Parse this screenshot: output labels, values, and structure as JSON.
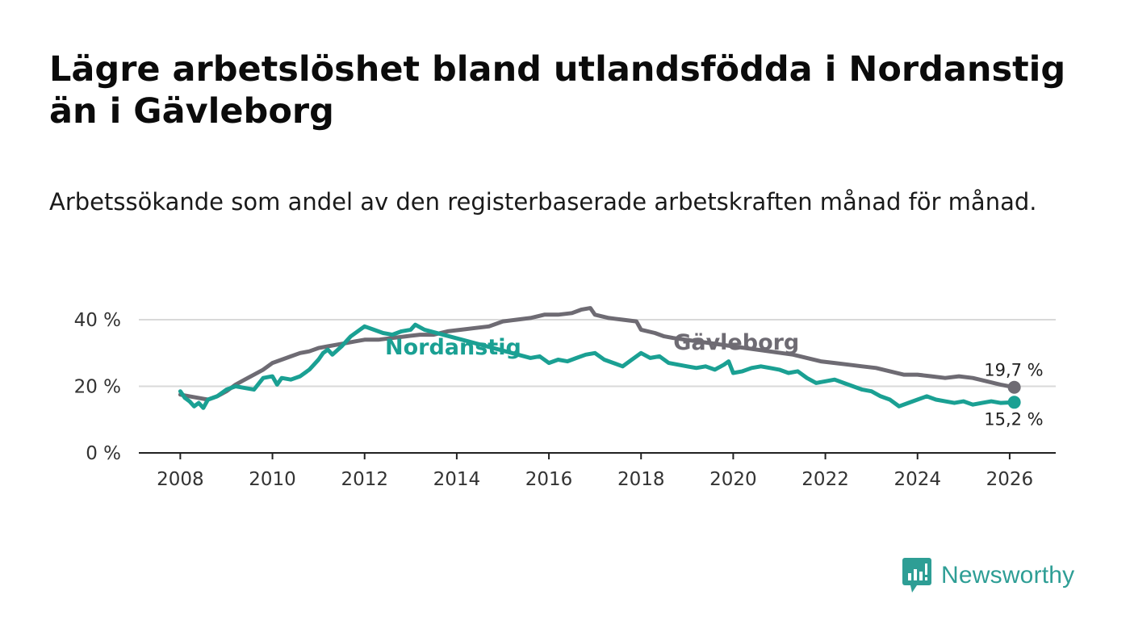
{
  "title": "Lägre arbetslöshet bland utlandsfödda i Nordanstig än i Gävleborg",
  "subtitle": "Arbetssökande som andel av den registerbaserade arbetskraften månad för månad.",
  "brand": {
    "name": "Newsworthy",
    "color": "#2e9e95"
  },
  "chart_data": {
    "type": "line",
    "title": "Lägre arbetslöshet bland utlandsfödda i Nordanstig än i Gävleborg",
    "xlabel": "",
    "ylabel": "",
    "xlim": [
      2007.1,
      2027.0
    ],
    "ylim": [
      0,
      40
    ],
    "x_ticks": [
      2008,
      2010,
      2012,
      2014,
      2016,
      2018,
      2020,
      2022,
      2024,
      2026
    ],
    "x_tick_labels": [
      "2008",
      "2010",
      "2012",
      "2014",
      "2016",
      "2018",
      "2020",
      "2022",
      "2024",
      "2026"
    ],
    "y_ticks": [
      0,
      20,
      40
    ],
    "y_tick_labels": [
      "0 %",
      "20 %",
      "40 %"
    ],
    "grid": true,
    "legend": "inline-labels",
    "series": [
      {
        "name": "Gävleborg",
        "color": "#6e6b73",
        "end_label": "19,7 %",
        "points": [
          [
            2008.0,
            17.5
          ],
          [
            2008.2,
            17.0
          ],
          [
            2008.4,
            16.5
          ],
          [
            2008.6,
            16.0
          ],
          [
            2008.8,
            17.0
          ],
          [
            2009.0,
            18.5
          ],
          [
            2009.2,
            20.5
          ],
          [
            2009.4,
            22.0
          ],
          [
            2009.6,
            23.5
          ],
          [
            2009.8,
            25.0
          ],
          [
            2010.0,
            27.0
          ],
          [
            2010.2,
            28.0
          ],
          [
            2010.4,
            29.0
          ],
          [
            2010.6,
            30.0
          ],
          [
            2010.8,
            30.5
          ],
          [
            2011.0,
            31.5
          ],
          [
            2011.2,
            32.0
          ],
          [
            2011.4,
            32.5
          ],
          [
            2011.6,
            33.0
          ],
          [
            2011.8,
            33.5
          ],
          [
            2012.0,
            34.0
          ],
          [
            2012.3,
            34.0
          ],
          [
            2012.6,
            34.5
          ],
          [
            2012.9,
            35.0
          ],
          [
            2013.2,
            35.5
          ],
          [
            2013.5,
            35.5
          ],
          [
            2013.8,
            36.5
          ],
          [
            2014.1,
            37.0
          ],
          [
            2014.4,
            37.5
          ],
          [
            2014.7,
            38.0
          ],
          [
            2015.0,
            39.5
          ],
          [
            2015.3,
            40.0
          ],
          [
            2015.6,
            40.5
          ],
          [
            2015.9,
            41.5
          ],
          [
            2016.2,
            41.5
          ],
          [
            2016.5,
            42.0
          ],
          [
            2016.7,
            43.0
          ],
          [
            2016.9,
            43.5
          ],
          [
            2017.0,
            41.5
          ],
          [
            2017.3,
            40.5
          ],
          [
            2017.6,
            40.0
          ],
          [
            2017.9,
            39.5
          ],
          [
            2018.0,
            37.0
          ],
          [
            2018.3,
            36.0
          ],
          [
            2018.5,
            35.0
          ],
          [
            2018.7,
            34.5
          ],
          [
            2021.3,
            29.5
          ],
          [
            2021.6,
            28.5
          ],
          [
            2021.9,
            27.5
          ],
          [
            2022.2,
            27.0
          ],
          [
            2022.5,
            26.5
          ],
          [
            2022.8,
            26.0
          ],
          [
            2023.1,
            25.5
          ],
          [
            2023.4,
            24.5
          ],
          [
            2023.7,
            23.5
          ],
          [
            2024.0,
            23.5
          ],
          [
            2024.3,
            23.0
          ],
          [
            2024.6,
            22.5
          ],
          [
            2024.9,
            23.0
          ],
          [
            2025.2,
            22.5
          ],
          [
            2025.5,
            21.5
          ],
          [
            2025.8,
            20.5
          ],
          [
            2026.1,
            19.7
          ]
        ]
      },
      {
        "name": "Nordanstig",
        "color": "#1aa093",
        "end_label": "15,2 %",
        "points": [
          [
            2008.0,
            18.5
          ],
          [
            2008.1,
            16.5
          ],
          [
            2008.2,
            15.5
          ],
          [
            2008.3,
            14.0
          ],
          [
            2008.4,
            15.0
          ],
          [
            2008.5,
            13.5
          ],
          [
            2008.6,
            16.0
          ],
          [
            2008.8,
            17.0
          ],
          [
            2009.0,
            19.0
          ],
          [
            2009.2,
            20.0
          ],
          [
            2009.4,
            19.5
          ],
          [
            2009.6,
            19.0
          ],
          [
            2009.8,
            22.5
          ],
          [
            2010.0,
            23.0
          ],
          [
            2010.1,
            20.5
          ],
          [
            2010.2,
            22.5
          ],
          [
            2010.4,
            22.0
          ],
          [
            2010.6,
            23.0
          ],
          [
            2010.8,
            25.0
          ],
          [
            2011.0,
            28.0
          ],
          [
            2011.1,
            30.0
          ],
          [
            2011.2,
            31.0
          ],
          [
            2011.3,
            29.5
          ],
          [
            2011.5,
            32.0
          ],
          [
            2011.7,
            35.0
          ],
          [
            2011.9,
            37.0
          ],
          [
            2012.0,
            38.0
          ],
          [
            2012.2,
            37.0
          ],
          [
            2012.4,
            36.0
          ],
          [
            2012.6,
            35.5
          ],
          [
            2012.8,
            36.5
          ],
          [
            2013.0,
            37.0
          ],
          [
            2013.1,
            38.5
          ],
          [
            2013.3,
            37.0
          ],
          [
            2015.6,
            28.5
          ],
          [
            2015.8,
            29.0
          ],
          [
            2016.0,
            27.0
          ],
          [
            2016.2,
            28.0
          ],
          [
            2016.4,
            27.5
          ],
          [
            2016.6,
            28.5
          ],
          [
            2016.8,
            29.5
          ],
          [
            2017.0,
            30.0
          ],
          [
            2017.2,
            28.0
          ],
          [
            2017.4,
            27.0
          ],
          [
            2017.6,
            26.0
          ],
          [
            2017.8,
            28.0
          ],
          [
            2018.0,
            30.0
          ],
          [
            2018.2,
            28.5
          ],
          [
            2018.4,
            29.0
          ],
          [
            2018.6,
            27.0
          ],
          [
            2018.8,
            26.5
          ],
          [
            2019.0,
            26.0
          ],
          [
            2019.2,
            25.5
          ],
          [
            2019.4,
            26.0
          ],
          [
            2019.6,
            25.0
          ],
          [
            2019.8,
            26.5
          ],
          [
            2019.9,
            27.5
          ],
          [
            2020.0,
            24.0
          ],
          [
            2020.2,
            24.5
          ],
          [
            2020.4,
            25.5
          ],
          [
            2020.6,
            26.0
          ],
          [
            2020.8,
            25.5
          ],
          [
            2021.0,
            25.0
          ],
          [
            2021.2,
            24.0
          ],
          [
            2021.4,
            24.5
          ],
          [
            2021.6,
            22.5
          ],
          [
            2021.8,
            21.0
          ],
          [
            2022.0,
            21.5
          ],
          [
            2022.2,
            22.0
          ],
          [
            2022.4,
            21.0
          ],
          [
            2022.6,
            20.0
          ],
          [
            2022.8,
            19.0
          ],
          [
            2023.0,
            18.5
          ],
          [
            2023.2,
            17.0
          ],
          [
            2023.4,
            16.0
          ],
          [
            2023.6,
            14.0
          ],
          [
            2023.8,
            15.0
          ],
          [
            2024.0,
            16.0
          ],
          [
            2024.2,
            17.0
          ],
          [
            2024.4,
            16.0
          ],
          [
            2024.6,
            15.5
          ],
          [
            2024.8,
            15.0
          ],
          [
            2025.0,
            15.5
          ],
          [
            2025.2,
            14.5
          ],
          [
            2025.4,
            15.0
          ],
          [
            2025.6,
            15.5
          ],
          [
            2025.8,
            15.0
          ],
          [
            2026.1,
            15.2
          ]
        ]
      }
    ]
  }
}
